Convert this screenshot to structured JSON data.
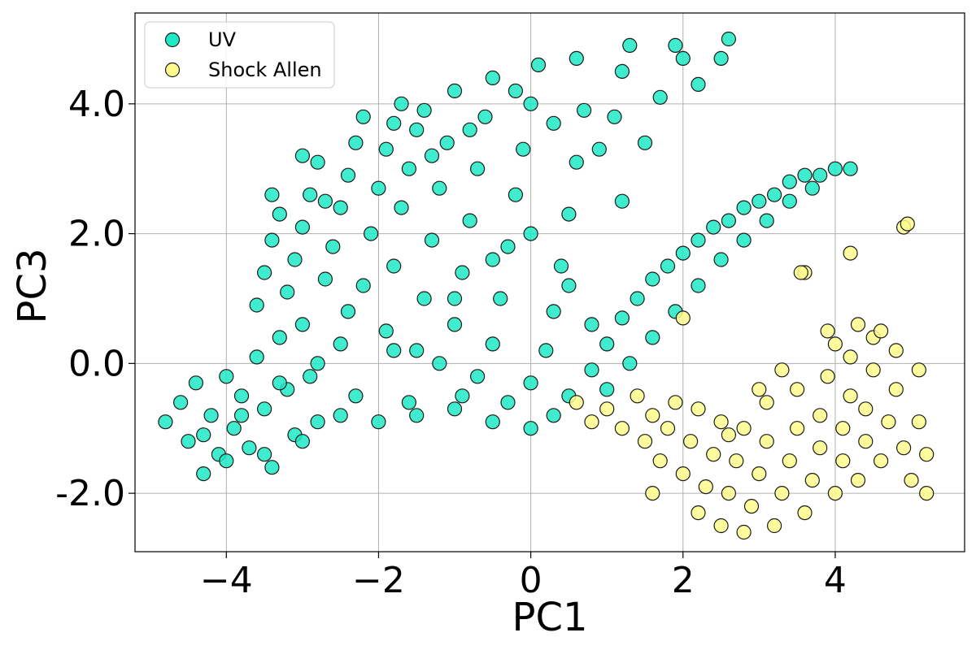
{
  "chart_data": {
    "type": "scatter",
    "xlabel": "PC1",
    "ylabel": "PC3",
    "xlim": [
      -5.2,
      5.7
    ],
    "ylim": [
      -2.9,
      5.4
    ],
    "xticks": [
      -4,
      -2,
      0,
      2,
      4
    ],
    "yticks": [
      -2.0,
      0.0,
      2.0,
      4.0
    ],
    "xtick_labels": [
      "−4",
      "−2",
      "0",
      "2",
      "4"
    ],
    "ytick_labels": [
      "-2.0",
      "0.0",
      "2.0",
      "4.0"
    ],
    "grid": true,
    "legend_position": "top-left",
    "series": [
      {
        "name": "UV",
        "color": "#1de9c4",
        "edge_color": "#1a1a1a",
        "points": [
          [
            -4.8,
            -0.9
          ],
          [
            -4.6,
            -0.6
          ],
          [
            -4.5,
            -1.2
          ],
          [
            -4.4,
            -0.3
          ],
          [
            -4.3,
            -1.7
          ],
          [
            -4.2,
            -0.8
          ],
          [
            -4.1,
            -1.4
          ],
          [
            -4.0,
            -0.2
          ],
          [
            -3.9,
            -1.0
          ],
          [
            -3.8,
            -0.5
          ],
          [
            -3.7,
            -1.3
          ],
          [
            -3.6,
            0.1
          ],
          [
            -3.5,
            -0.7
          ],
          [
            -3.4,
            -1.6
          ],
          [
            -3.3,
            0.4
          ],
          [
            -3.2,
            -0.4
          ],
          [
            -3.1,
            -1.1
          ],
          [
            -3.0,
            0.6
          ],
          [
            -2.9,
            -0.2
          ],
          [
            -2.8,
            -0.9
          ],
          [
            -3.6,
            0.9
          ],
          [
            -3.5,
            1.4
          ],
          [
            -3.4,
            1.9
          ],
          [
            -3.3,
            2.3
          ],
          [
            -3.4,
            2.6
          ],
          [
            -3.2,
            1.1
          ],
          [
            -3.1,
            1.6
          ],
          [
            -3.0,
            2.1
          ],
          [
            -2.9,
            2.6
          ],
          [
            -2.8,
            3.1
          ],
          [
            -2.7,
            1.3
          ],
          [
            -2.6,
            1.8
          ],
          [
            -2.5,
            2.4
          ],
          [
            -2.4,
            2.9
          ],
          [
            -2.3,
            3.4
          ],
          [
            -2.5,
            0.3
          ],
          [
            -2.4,
            0.8
          ],
          [
            -2.3,
            -0.5
          ],
          [
            -2.2,
            1.2
          ],
          [
            -2.1,
            2.0
          ],
          [
            -2.0,
            2.7
          ],
          [
            -1.9,
            3.3
          ],
          [
            -1.8,
            3.7
          ],
          [
            -1.9,
            0.5
          ],
          [
            -1.8,
            1.5
          ],
          [
            -1.7,
            2.4
          ],
          [
            -1.6,
            3.0
          ],
          [
            -1.5,
            3.6
          ],
          [
            -1.4,
            3.9
          ],
          [
            -1.6,
            -0.6
          ],
          [
            -1.5,
            0.2
          ],
          [
            -1.4,
            1.0
          ],
          [
            -1.3,
            1.9
          ],
          [
            -1.2,
            2.7
          ],
          [
            -1.1,
            3.4
          ],
          [
            -1.0,
            4.2
          ],
          [
            -1.2,
            0.0
          ],
          [
            -1.0,
            0.6
          ],
          [
            -0.9,
            1.4
          ],
          [
            -0.8,
            2.2
          ],
          [
            -0.7,
            3.0
          ],
          [
            -0.6,
            3.8
          ],
          [
            -0.5,
            4.4
          ],
          [
            -0.9,
            -0.5
          ],
          [
            -0.7,
            -0.2
          ],
          [
            -0.5,
            0.3
          ],
          [
            -0.4,
            1.0
          ],
          [
            -0.3,
            1.8
          ],
          [
            -0.2,
            2.6
          ],
          [
            -0.1,
            3.3
          ],
          [
            0.0,
            4.0
          ],
          [
            0.1,
            4.6
          ],
          [
            -0.3,
            -0.6
          ],
          [
            0.0,
            -0.3
          ],
          [
            0.2,
            0.2
          ],
          [
            0.3,
            0.8
          ],
          [
            0.4,
            1.5
          ],
          [
            0.5,
            2.3
          ],
          [
            0.6,
            3.1
          ],
          [
            0.7,
            3.9
          ],
          [
            0.6,
            4.7
          ],
          [
            0.5,
            -0.5
          ],
          [
            0.8,
            -0.1
          ],
          [
            1.0,
            0.3
          ],
          [
            1.2,
            0.7
          ],
          [
            1.4,
            1.0
          ],
          [
            1.6,
            1.3
          ],
          [
            1.8,
            1.5
          ],
          [
            2.0,
            1.7
          ],
          [
            2.2,
            1.9
          ],
          [
            2.4,
            2.1
          ],
          [
            2.6,
            2.2
          ],
          [
            2.8,
            2.4
          ],
          [
            3.0,
            2.5
          ],
          [
            3.2,
            2.6
          ],
          [
            3.4,
            2.8
          ],
          [
            3.6,
            2.9
          ],
          [
            3.8,
            2.9
          ],
          [
            4.0,
            3.0
          ],
          [
            4.2,
            3.0
          ],
          [
            1.0,
            -0.4
          ],
          [
            1.3,
            0.0
          ],
          [
            1.6,
            0.4
          ],
          [
            1.9,
            0.8
          ],
          [
            2.2,
            1.2
          ],
          [
            2.5,
            1.6
          ],
          [
            2.8,
            1.9
          ],
          [
            3.1,
            2.2
          ],
          [
            3.4,
            2.5
          ],
          [
            3.7,
            2.7
          ],
          [
            1.1,
            3.8
          ],
          [
            1.2,
            4.5
          ],
          [
            1.3,
            4.9
          ],
          [
            1.5,
            3.4
          ],
          [
            1.7,
            4.1
          ],
          [
            1.9,
            4.9
          ],
          [
            2.0,
            4.7
          ],
          [
            2.2,
            4.3
          ],
          [
            2.5,
            4.7
          ],
          [
            2.6,
            5.0
          ],
          [
            -2.0,
            -0.9
          ],
          [
            -1.5,
            -0.8
          ],
          [
            -1.0,
            -0.7
          ],
          [
            -0.5,
            -0.9
          ],
          [
            0.0,
            -1.0
          ],
          [
            0.3,
            -0.8
          ],
          [
            -2.5,
            -0.8
          ],
          [
            -3.0,
            -1.2
          ],
          [
            -3.5,
            -1.4
          ],
          [
            -4.0,
            -1.5
          ],
          [
            -3.0,
            3.2
          ],
          [
            -2.7,
            2.5
          ],
          [
            -2.2,
            3.8
          ],
          [
            -1.7,
            4.0
          ],
          [
            -1.3,
            3.2
          ],
          [
            -0.8,
            3.6
          ],
          [
            -0.2,
            4.2
          ],
          [
            0.3,
            3.7
          ],
          [
            0.9,
            3.3
          ],
          [
            1.2,
            2.5
          ],
          [
            -1.0,
            1.0
          ],
          [
            -0.5,
            1.6
          ],
          [
            0.0,
            2.0
          ],
          [
            0.5,
            1.2
          ],
          [
            0.8,
            0.6
          ],
          [
            -1.8,
            0.2
          ],
          [
            -2.8,
            0.0
          ],
          [
            -3.3,
            -0.3
          ],
          [
            -3.8,
            -0.8
          ],
          [
            -4.3,
            -1.1
          ]
        ]
      },
      {
        "name": "Shock Allen",
        "color": "#fefb8c",
        "edge_color": "#1a1a1a",
        "points": [
          [
            0.6,
            -0.6
          ],
          [
            0.8,
            -0.9
          ],
          [
            1.0,
            -0.7
          ],
          [
            1.2,
            -1.0
          ],
          [
            1.4,
            -0.5
          ],
          [
            1.5,
            -1.2
          ],
          [
            1.6,
            -0.8
          ],
          [
            1.7,
            -1.5
          ],
          [
            1.8,
            -1.0
          ],
          [
            1.9,
            -0.6
          ],
          [
            2.0,
            -1.7
          ],
          [
            2.1,
            -1.2
          ],
          [
            2.2,
            -0.7
          ],
          [
            2.2,
            -2.3
          ],
          [
            2.3,
            -1.9
          ],
          [
            2.4,
            -1.4
          ],
          [
            2.5,
            -0.9
          ],
          [
            2.5,
            -2.5
          ],
          [
            2.6,
            -2.0
          ],
          [
            2.7,
            -1.5
          ],
          [
            2.8,
            -1.0
          ],
          [
            2.8,
            -2.6
          ],
          [
            2.9,
            -2.2
          ],
          [
            3.0,
            -1.7
          ],
          [
            3.1,
            -1.2
          ],
          [
            3.1,
            -0.6
          ],
          [
            3.2,
            -2.5
          ],
          [
            3.3,
            -2.0
          ],
          [
            3.4,
            -1.5
          ],
          [
            3.5,
            -1.0
          ],
          [
            3.5,
            -0.4
          ],
          [
            3.6,
            -2.3
          ],
          [
            3.7,
            -1.8
          ],
          [
            3.8,
            -1.3
          ],
          [
            3.8,
            -0.8
          ],
          [
            3.9,
            -0.2
          ],
          [
            4.0,
            -2.0
          ],
          [
            4.1,
            -1.5
          ],
          [
            4.1,
            -1.0
          ],
          [
            4.2,
            -0.5
          ],
          [
            4.2,
            0.1
          ],
          [
            4.3,
            -1.8
          ],
          [
            4.4,
            -1.2
          ],
          [
            4.4,
            -0.7
          ],
          [
            4.5,
            -0.1
          ],
          [
            4.5,
            0.4
          ],
          [
            4.6,
            -1.5
          ],
          [
            4.7,
            -0.9
          ],
          [
            4.8,
            -0.4
          ],
          [
            4.8,
            0.2
          ],
          [
            4.9,
            -1.3
          ],
          [
            5.0,
            -1.8
          ],
          [
            5.1,
            -0.1
          ],
          [
            5.1,
            -0.9
          ],
          [
            5.2,
            -2.0
          ],
          [
            5.2,
            -1.4
          ],
          [
            3.9,
            0.5
          ],
          [
            4.0,
            0.3
          ],
          [
            4.3,
            0.6
          ],
          [
            4.6,
            0.5
          ],
          [
            1.6,
            -2.0
          ],
          [
            2.0,
            0.7
          ],
          [
            3.6,
            1.4
          ],
          [
            3.55,
            1.4
          ],
          [
            4.2,
            1.7
          ],
          [
            4.9,
            2.1
          ],
          [
            4.95,
            2.15
          ],
          [
            2.6,
            -1.1
          ],
          [
            3.0,
            -0.4
          ],
          [
            3.3,
            -0.1
          ]
        ]
      }
    ]
  }
}
